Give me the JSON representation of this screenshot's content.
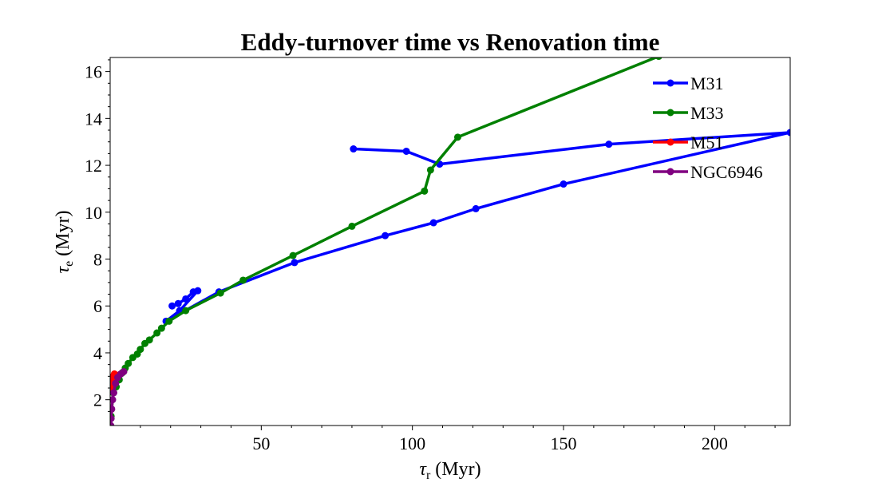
{
  "chart_data": {
    "type": "line",
    "title": "Eddy-turnover time vs Renovation time",
    "xlabel_symbol": "τ",
    "xlabel_sub": "r",
    "xlabel_unit": " (Myr)",
    "ylabel_symbol": "τ",
    "ylabel_sub": "e",
    "ylabel_unit": " (Myr)",
    "xlim": [
      0,
      225
    ],
    "ylim": [
      0.9,
      16.6
    ],
    "xticks": [
      50,
      100,
      150,
      200
    ],
    "yticks": [
      2,
      4,
      6,
      8,
      10,
      12,
      14,
      16
    ],
    "legend_position": "upper right",
    "series": [
      {
        "name": "M31",
        "color": "#0000ff",
        "points": [
          [
            20.5,
            6.0
          ],
          [
            22.5,
            6.1
          ],
          [
            25,
            6.3
          ],
          [
            27.5,
            6.6
          ],
          [
            29,
            6.65
          ],
          [
            23,
            5.8
          ],
          [
            18.5,
            5.35
          ],
          [
            36,
            6.6
          ],
          [
            61,
            7.85
          ],
          [
            91,
            9.0
          ],
          [
            107,
            9.55
          ],
          [
            121,
            10.15
          ],
          [
            150,
            11.2
          ],
          [
            225,
            13.4
          ],
          [
            165,
            12.9
          ],
          [
            109,
            12.05
          ],
          [
            98,
            12.6
          ],
          [
            80.5,
            12.7
          ]
        ]
      },
      {
        "name": "M33",
        "color": "#008000",
        "points": [
          [
            0.3,
            1.3
          ],
          [
            1,
            2.3
          ],
          [
            2,
            2.55
          ],
          [
            3,
            2.85
          ],
          [
            4,
            3.15
          ],
          [
            5,
            3.35
          ],
          [
            6,
            3.55
          ],
          [
            7.5,
            3.8
          ],
          [
            9,
            3.95
          ],
          [
            10,
            4.15
          ],
          [
            11.5,
            4.4
          ],
          [
            13,
            4.55
          ],
          [
            15.5,
            4.85
          ],
          [
            17,
            5.05
          ],
          [
            19.5,
            5.35
          ],
          [
            25,
            5.8
          ],
          [
            36.5,
            6.55
          ],
          [
            44,
            7.1
          ],
          [
            60.5,
            8.15
          ],
          [
            80,
            9.4
          ],
          [
            104,
            10.9
          ],
          [
            106,
            11.8
          ],
          [
            115,
            13.2
          ],
          [
            181.5,
            16.65
          ]
        ]
      },
      {
        "name": "M51",
        "color": "#ff0000",
        "points": [
          [
            0.3,
            2.5
          ],
          [
            0.6,
            2.8
          ],
          [
            1.0,
            3.0
          ],
          [
            1.4,
            3.1
          ],
          [
            2.0,
            3.05
          ],
          [
            1.2,
            2.9
          ]
        ]
      },
      {
        "name": "NGC6946",
        "color": "#800080",
        "points": [
          [
            0.2,
            0.9
          ],
          [
            0.3,
            1.2
          ],
          [
            0.5,
            1.6
          ],
          [
            0.8,
            2.0
          ],
          [
            1.2,
            2.3
          ],
          [
            1.8,
            2.7
          ],
          [
            2.5,
            2.95
          ],
          [
            3.5,
            3.1
          ],
          [
            4.5,
            3.2
          ]
        ]
      }
    ]
  }
}
